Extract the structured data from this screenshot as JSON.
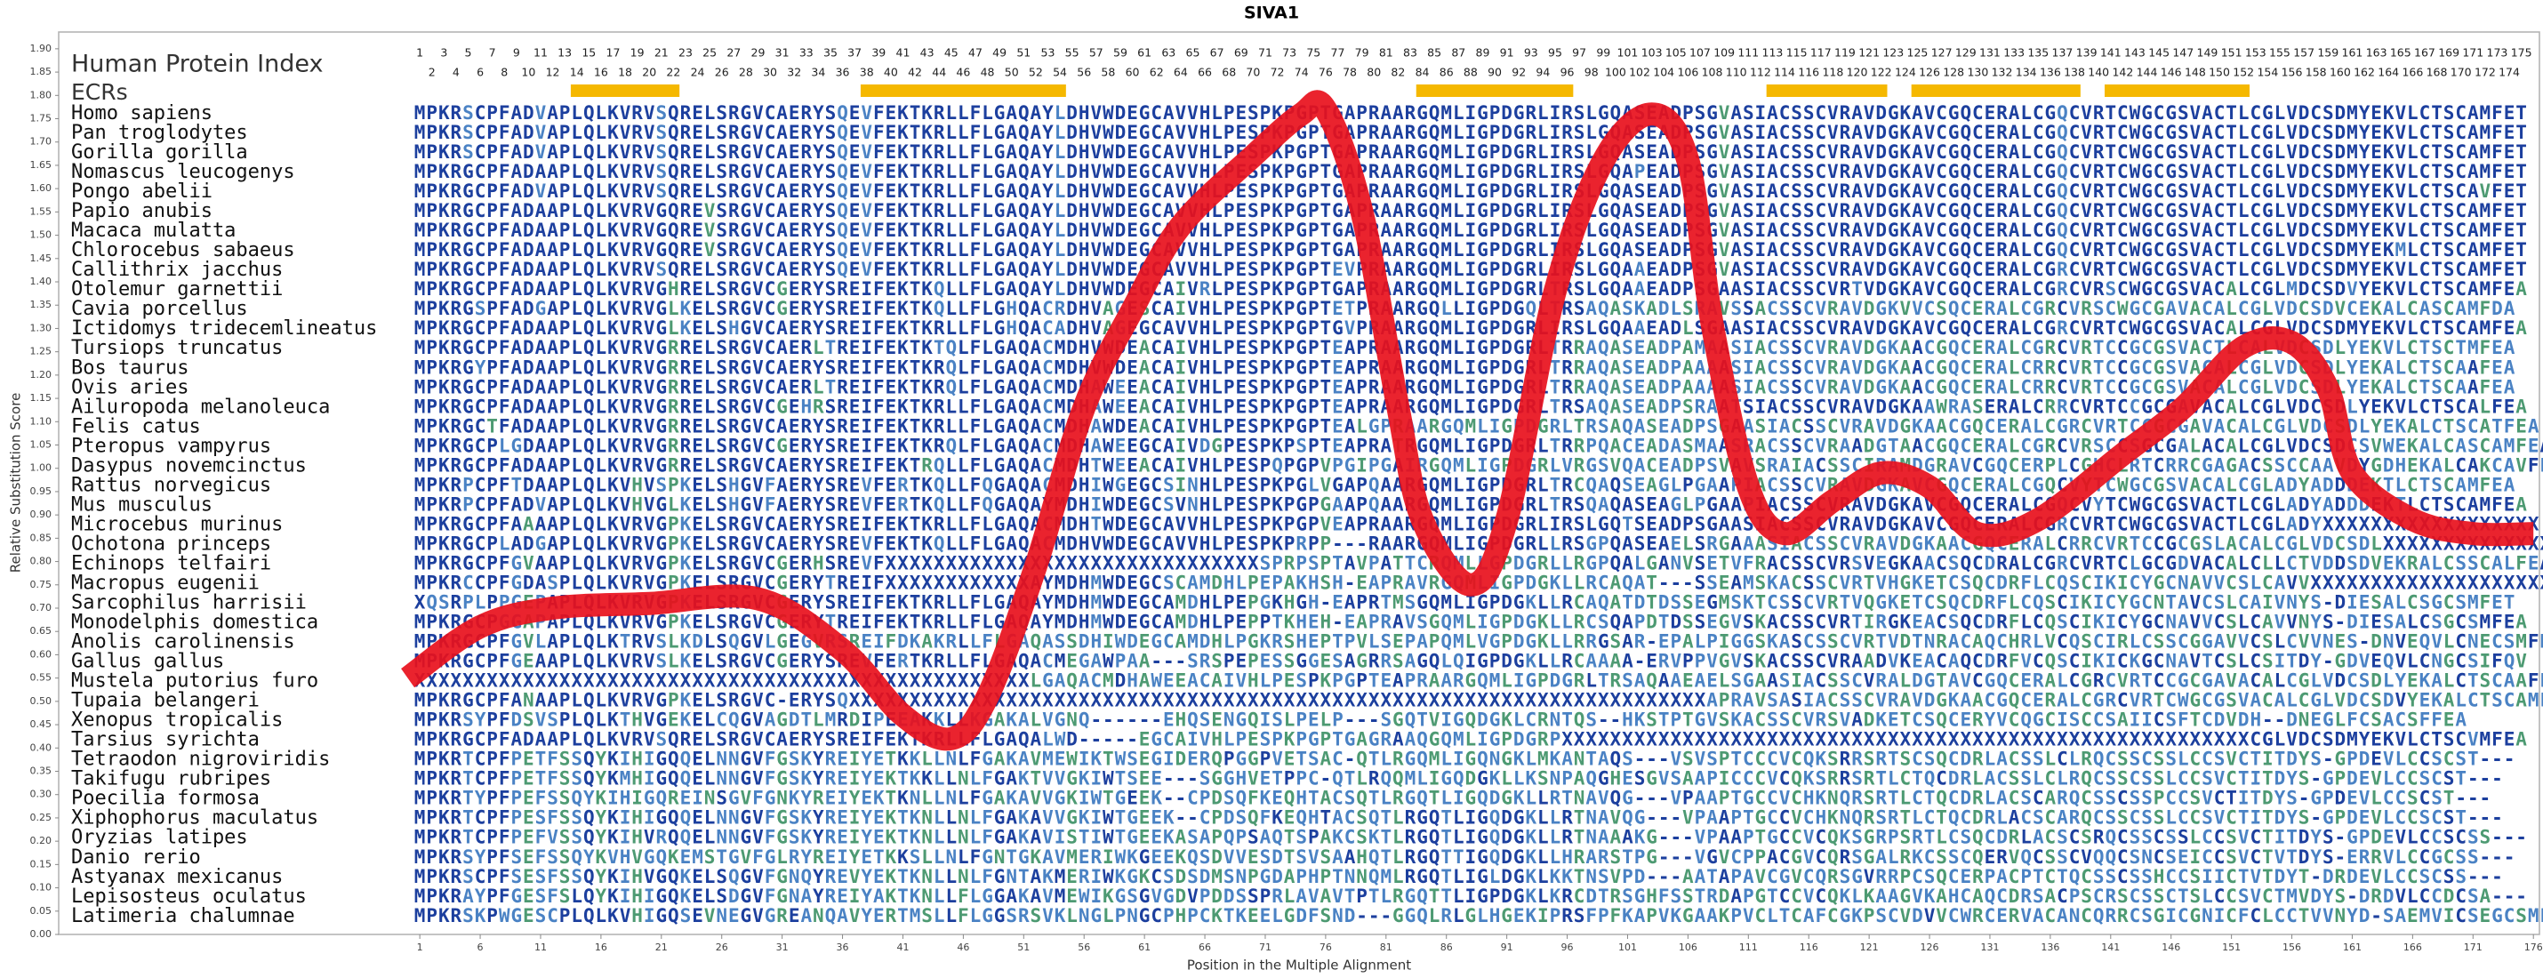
{
  "chart_data": {
    "type": "line",
    "title": "SIVA1",
    "x_label": "Position in the Multiple Alignment",
    "y_label": "Relative Substitution Score",
    "xlim": [
      -28.9,
      176.5
    ],
    "ylim": [
      0,
      1.936
    ],
    "xticks": [
      1,
      6,
      11,
      16,
      21,
      26,
      31,
      36,
      41,
      46,
      51,
      56,
      61,
      66,
      71,
      76,
      81,
      86,
      91,
      96,
      101,
      106,
      111,
      116,
      121,
      126,
      131,
      136,
      141,
      146,
      151,
      156,
      161,
      166,
      171,
      176
    ],
    "yticks": [
      {
        "value": 0,
        "label": "0.00"
      },
      {
        "value": 0.05,
        "label": "0.05"
      },
      {
        "value": 0.1,
        "label": "0.10"
      },
      {
        "value": 0.15,
        "label": "0.15"
      },
      {
        "value": 0.2,
        "label": "0.20"
      },
      {
        "value": 0.25,
        "label": "0.25"
      },
      {
        "value": 0.3,
        "label": "0.30"
      },
      {
        "value": 0.35,
        "label": "0.35"
      },
      {
        "value": 0.4,
        "label": "0.40"
      },
      {
        "value": 0.45,
        "label": "0.45"
      },
      {
        "value": 0.5,
        "label": "0.50"
      },
      {
        "value": 0.55,
        "label": "0.55"
      },
      {
        "value": 0.6,
        "label": "0.60"
      },
      {
        "value": 0.65,
        "label": "0.65"
      },
      {
        "value": 0.7,
        "label": "0.70"
      },
      {
        "value": 0.75,
        "label": "0.75"
      },
      {
        "value": 0.8,
        "label": "0.80"
      },
      {
        "value": 0.85,
        "label": "0.85"
      },
      {
        "value": 0.9,
        "label": "0.90"
      },
      {
        "value": 0.95,
        "label": "0.95"
      },
      {
        "value": 1,
        "label": "1.00"
      },
      {
        "value": 1.05,
        "label": "1.05"
      },
      {
        "value": 1.1,
        "label": "1.10"
      },
      {
        "value": 1.15,
        "label": "1.15"
      },
      {
        "value": 1.2,
        "label": "1.20"
      },
      {
        "value": 1.25,
        "label": "1.25"
      },
      {
        "value": 1.3,
        "label": "1.30"
      },
      {
        "value": 1.35,
        "label": "1.35"
      },
      {
        "value": 1.4,
        "label": "1.40"
      },
      {
        "value": 1.45,
        "label": "1.45"
      },
      {
        "value": 1.5,
        "label": "1.50"
      },
      {
        "value": 1.55,
        "label": "1.55"
      },
      {
        "value": 1.6,
        "label": "1.60"
      },
      {
        "value": 1.65,
        "label": "1.65"
      },
      {
        "value": 1.7,
        "label": "1.70"
      },
      {
        "value": 1.75,
        "label": "1.75"
      },
      {
        "value": 1.8,
        "label": "1.80"
      },
      {
        "value": 1.85,
        "label": "1.85"
      },
      {
        "value": 1.9,
        "label": "1.90"
      }
    ],
    "x": [
      0,
      6,
      12,
      20,
      29,
      36,
      41,
      45,
      48,
      52,
      56,
      60,
      64,
      70,
      74,
      76,
      79,
      82,
      84,
      88,
      91,
      95,
      99,
      103,
      106,
      108,
      111,
      114,
      118,
      122,
      126,
      130,
      135,
      142,
      147,
      152,
      156,
      159,
      161,
      166,
      171,
      176
    ],
    "series": [
      {
        "color": "#e8101c",
        "values": [
          0.55,
          0.66,
          0.7,
          0.71,
          0.72,
          0.61,
          0.47,
          0.42,
          0.51,
          0.79,
          1.13,
          1.34,
          1.52,
          1.67,
          1.76,
          1.77,
          1.55,
          1.13,
          0.89,
          0.75,
          0.89,
          1.38,
          1.66,
          1.76,
          1.66,
          1.31,
          0.96,
          0.86,
          0.93,
          0.99,
          0.96,
          0.86,
          0.89,
          1.03,
          1.13,
          1.26,
          1.27,
          1.17,
          0.99,
          0.89,
          0.86,
          0.86
        ]
      }
    ],
    "human_protein_index": {
      "label": "Human Protein Index",
      "odd": [
        1,
        3,
        5,
        7,
        9,
        11,
        13,
        15,
        17,
        19,
        21,
        23,
        25,
        27,
        29,
        31,
        33,
        35,
        37,
        39,
        41,
        43,
        45,
        47,
        49,
        51,
        53,
        55,
        57,
        59,
        61,
        63,
        65,
        67,
        69,
        71,
        73,
        75,
        77,
        79,
        81,
        83,
        85,
        87,
        89,
        91,
        93,
        95,
        97,
        99,
        101,
        103,
        105,
        107,
        109,
        111,
        113,
        115,
        117,
        119,
        121,
        123,
        125,
        127,
        129,
        131,
        133,
        135,
        137,
        139,
        141,
        143,
        145,
        147,
        149,
        151,
        153,
        155,
        157,
        159,
        161,
        163,
        165,
        167,
        169,
        171,
        173,
        175
      ],
      "even": [
        2,
        4,
        6,
        8,
        10,
        12,
        14,
        16,
        18,
        20,
        22,
        24,
        26,
        28,
        30,
        32,
        34,
        36,
        38,
        40,
        42,
        44,
        46,
        48,
        50,
        52,
        54,
        56,
        58,
        60,
        62,
        64,
        66,
        68,
        70,
        72,
        74,
        76,
        78,
        80,
        82,
        84,
        86,
        88,
        90,
        92,
        94,
        96,
        98,
        100,
        102,
        104,
        106,
        108,
        110,
        112,
        114,
        116,
        118,
        120,
        122,
        124,
        126,
        128,
        130,
        132,
        134,
        136,
        138,
        140,
        142,
        144,
        146,
        148,
        150,
        152,
        154,
        156,
        158,
        160,
        162,
        164,
        166,
        168,
        170,
        172,
        174
      ]
    },
    "ecrs": {
      "label": "ECRs",
      "color": "#f5b800",
      "ranges": [
        [
          14,
          22
        ],
        [
          38,
          54
        ],
        [
          84,
          96
        ],
        [
          113,
          122
        ],
        [
          125,
          138
        ],
        [
          141,
          152
        ]
      ]
    },
    "alignment": [
      {
        "species": "Homo sapiens",
        "sequence": "MPKRSCPFADVAPLQLKVRVSQRELSRGVCAERYSQEVFEKTKRLLFLGAQAYLDHVWDEGCAVVHLPESPKPGPTGAPRAARGQMLIGPDGRLIRSLGQASEADPSGVASIACSSCVRAVDGKAVCGQCERALCGQCVRTCWGCGSVACTLCGLVDCSDMYEKVLCTSCAMFET"
      },
      {
        "species": "Pan troglodytes",
        "sequence": "MPKRSCPFADVAPLQLKVRVSQRELSRGVCAERYSQEVFEKTKRLLFLGAQAYLDHVWDEGCAVVHLPESPKPGPTGAPRAARGQMLIGPDGRLIRSLGQASEADPSGVASIACSSCVRAVDGKAVCGQCERALCGQCVRTCWGCGSVACTLCGLVDCSDMYEKVLCTSCAMFET"
      },
      {
        "species": "Gorilla gorilla",
        "sequence": "MPKRSCPFADVAPLQLKVRVSQRELSRGVCAERYSQEVFEKTKRLLFLGAQAYLDHVWDEGCAVVHLPESPKPGPTGAPRAARGQMLIGPDGRLIRSLGQASEADPSGVASIACSSCVRAVDGKAVCGQCERALCGQCVRTCWGCGSVACTLCGLVDCSDMYEKVLCTSCAMFET"
      },
      {
        "species": "Nomascus leucogenys",
        "sequence": "MPKRGCPFADAAPLQLKVRVSQRELSRGVCAERYSQEVFEKTKRLLFLGAQAYLDHVWDEGCAVVHLPESPKPGPTGAPRAARGQMLIGPDGRLIRSLGQAPEADPSGVASIACSSCVRAVDGKAVCGQCERALCGQCVRTCWGCGSVACTLCGLVDCSDMYEKVLCTSCAMFET"
      },
      {
        "species": "Pongo abelii",
        "sequence": "MPKRGCPFADVAPLQLKVRVSQRELSRGVCAERYSQEVFEKTKRLLFLGAQAYLDHVWDEGCAVVHLPESPKPGPTGAPRAARGQMLIGPDGRLIRSLGQASEADPSGVASIACSSCVRAVDGKAVCGQCERALCGQCVRTCWGCGSVACTLCGLVDCSDMYEKVLCTSCAVFET"
      },
      {
        "species": "Papio anubis",
        "sequence": "MPKRGCPFADAAPLQLKVRVGQREVSRGVCAERYSQEVFEKTKRLLFLGAQAYLDHVWDEGCAVVHLPESPKPGPTGAPRAARGQMLIGPDGRLIRSLGQASEADPSGVASIACSSCVRAVDGKAVCGQCERALCGQCVRTCWGCGSVACTLCGLVDCSDMYEKVLCTSCAMFET"
      },
      {
        "species": "Macaca mulatta",
        "sequence": "MPKRGCPFADAAPLQLKVRVGQREVSRGVCAERYSQEVFEKTKRLLFLGAQAYLDHVWDEGCAVVHLPESPKPGPTGAPRAARGQMLIGPDGRLIRSLGQASEADPSGVASIACSSCVRAVDGKAVCGQCERALCGQCVRTCWGCGSVACTLCGLVDCSDMYEKVLCTSCAMFET"
      },
      {
        "species": "Chlorocebus sabaeus",
        "sequence": "MPKRGCPFADAAPLQLKVRVGQREVSRGVCAERYSQEVFEKTKRLLFLGAQAYLDHVWDEGCAVVHLPESPKPGPTGAPRAARGQMLIGPDGRLIRSLGQASEADPSGVASIACSSCVRAVDGKAVCGQCERALCGQCVRTCWGCGSVACTLCGLVDCSDMYEKMLCTSCAMFET"
      },
      {
        "species": "Callithrix jacchus",
        "sequence": "MPKRGCPFADAAPLQLKVRVSQRELSRGVCAERYSQEVFEKTKRLLFLGAQAYLDHVWDEGCAVVHLPESPKPGPTEVPRAARGQMLIGPDGRLIRSLGQAAEADPSGVASIACSSCVRAVDGKAVCGQCERALCGRCVRTCWGCGSVACTLCGLVDCSDMYEKVLCTSCAMFET"
      },
      {
        "species": "Otolemur garnettii",
        "sequence": "MPKRGCPFADAAPLQLKVRVGHRELSRGVCGERYSREIFEKTKQLLFLGAQAYLDHVWDEGCAIVRLPESPKPGPTGAPRAARGQMLIGPDGRLTRSLGQAAEADPSGAASIACSSCVRTVDGKAVCGQCERALCGRCVRSCWGCGSVACALCGLMDCSDVYEKVLCTSCAMFEA"
      },
      {
        "species": "Cavia porcellus",
        "sequence": "MPKRGSPFADGAPLQLKVRVGLKELSRGVCGERYSREIFEKTKQLLFLGHQACRDHVAGESCAIVHLPESPKPGPTETPRAARGQLLIGPDGQLTRSAQASKADLSRAVSSACSSCVRAVDGKVVCSQCERALCGRCVRSCWGCGAVACALCGLVDCSDVCEKALCASCAMFDA"
      },
      {
        "species": "Ictidomys tridecemlineatus",
        "sequence": "MPKRGCPFADAAPLQLKVRVGLKELSHGVCAERYSREIFEKTKRLLFLGHQACADHVAGEGCAVVHLPESPKPGPTGVPRAARGQMLIGPDGRLIRSLGQAAEADLSGAASIACSSCVRAVDGKAVCGQCERALCGRCVRTCWGCGSVACALCGLVDCSDMYEKVLCTSCAMFEA"
      },
      {
        "species": "Tursiops truncatus",
        "sequence": "MPKRGCPFADAAPLQLKVRVGRRELSRGVCAERLTREIFEKTKTQLFLGAQACMDHVWDEACAIVHLPESPKPGPTEAPRAARGQMLIGPDGRLTRRAQASEADPAMAASIACSSCVRAVDGKAACGQCERALCGRCVRTCCGCGSVACTLCALVDCSDLYEKVLCTSCTMFEA"
      },
      {
        "species": "Bos taurus",
        "sequence": "MPKRGYPFADAAPLQLKVRVGRRELSRGVCAERYSREIFEKTKRQLFLGAQACMDHVWDEACAIVHLPESPKPGPTEAPRAARGQMLIGPDGRLTRRAQASEADPAAAASIACSSCVRAVDGKAACGQCERALCRRCVRTCCGCGSVACALCGLVDCSDLYEKALCTSCAAFEA"
      },
      {
        "species": "Ovis aries",
        "sequence": "MPKRGCPFADAAPLQLKVRVGRRELSRGVCAERLTREIFEKTKRQLFLGAQACMDHAWEEACAIVHLPESPKPGPTEAPRAARGQMLIGPDGRLTRRAQASEADPAAAASIACSSCVRAVDGKAACGQCERALCRRCVRTCCGCGSVACALCGLVDCSDLYEKALCTSCAAFEA"
      },
      {
        "species": "Ailuropoda melanoleuca",
        "sequence": "MPKRGCPFADAAPLQLKVRVGRRELSRGVCGEHRSREIFEKTKRLLFLGAQACMDHAWEEACAIVHLPESPKPGPTEAPRAARGQMLIGPDGRLTRSAQASEADPSRAATSIACSSCVRAVDGKAAWRASERALCRRCVRTCCGCGAVACALCGLVDCSDLYEKVLCTSCALFEA"
      },
      {
        "species": "Felis catus",
        "sequence": "MPKRGCTFADAAPLQLKVRVGRRELSRGVCAERYSREIFEKTKRLLFLGAQACMDHAWDEACAIVHLPESPKPGPTEALGPRAARGQMLIGPDGRLTRSAQASEADPSGAASIACSSCVRAVDGKAACGQCERALCGRCVRTCCGCGAVACALCGLVDCSDLYEKALCTSCATFEA"
      },
      {
        "species": "Pteropus vampyrus",
        "sequence": "MPKRGCPLGDAAPLQLKVRVGRRELSRGVCGERYSREIFEKTKRQLFLGAQACMDHAWEEGCAIVDGPESPKPSPTEAPRATRGQMLIGPDGRLTRRPQACEADASMAASRACSSCVRAADGTAACGQCERALCGRCVRSCCSGCGALACALCGLVDCSDCSVWEKALCASCAMFEA"
      },
      {
        "species": "Dasypus novemcinctus",
        "sequence": "MPKRGCPFADAAPLQLKVRVGRRELSRGVCAERYSREIFEKTRQLLFLGAQACMDHTWEEACAIVHLPESPQPGPVPGIPGAIRGQMLIGPDGRLVRGSVQACEADPSVAVSRAIACSSCIRAMDGRAVCGQCERPLCGHCLRTCRRCGAGACSSCCAAVDYGDHEKALCAKCAVFEA"
      },
      {
        "species": "Rattus norvegicus",
        "sequence": "MPKRPCPFTDAAPLQLKVHVSPKELSHGVFAERYSREVFERTKQLLFQGAQACMDHIWGEGCSINHLPESPKPGLVGAPQAARGQMLIGPDGRLTRCQAQSEAGLPGAAPIACSSCVRAVDGKAVCGQCERALCGQCVYTCWGCGSVACALCGLADYADDDEKTLCTSCAMFEA"
      },
      {
        "species": "Mus musculus",
        "sequence": "MPKRPCPFADVAPLQLKVHVGLKELSHGVFAERYSREVFERTKQLLFQGAQAYMDHIWDEGCSVNHLPESPKPGPGAAPQAARGQMLIGPDGRLTRSQAQASEAGLPGAAPIACSSCVRAVDGKAVCGQCERALCGQCVYTCWGCGSVACTLCGLADYADDDEKTLCTSCAMFEA"
      },
      {
        "species": "Microcebus murinus",
        "sequence": "MPKRGCPFAAAAPLQLKVRVGPKELSRGVCAERYSREIFEKTKRLLFLGAQACMDHTWDEGCAVVHLPESPKPGPVEAPRAARGQMLIGPDGRLIRSLGQTSEADPSGAASIACSSCVRAVDGKAVCGQCERALCGRCVRTCWGCGSVACTLCGLADYXXXXXXXXXXXXXXXXXX"
      },
      {
        "species": "Ochotona princeps",
        "sequence": "MPKRGCPLADGAPLQLKVRVGPKELSRGVCAERYSREVFEKTKQLLFLGAQACMDHVWDEGCAVVHLPESPKPRPP---RAARGQMLIGPDGRLLRSGPQASEAELSRGAAASIACSSCVRAVDGKAACGQCERALCRRCVRTCCGCGSLACALCGLVDCSDLXXXXXXXXXXXXXXXX"
      },
      {
        "species": "Echinops telfairi",
        "sequence": "MPKRGCPFGVAAPLQLKVRVGPKELSRGVCGERHSREVFXXXXXXXXXXXXXXXXXXXXXXXXXXXXXXXSPRPSPTAVPATTCRQMLLGPDGRLLRGPQALGANVSETVFRACSSCVRSVEGKAACSQCDRALCGRCVRTCLGCGDVACALCLLCTVDDSDVEKRALCSSCALFEA"
      },
      {
        "species": "Macropus eugenii",
        "sequence": "MPKRCCPFGDASPLQLKVRVGPKELSRGVCGERYTREIFXXXXXXXXXXXXAYMDHMWDEGCSCAMDHLPEPAKHSH-EAPRAVRGQMLIGPDGKLLRCAQAT---SSEAMSKACSSCVRTVHGKETCSQCDRFLCQSCIKICYGCNAVVCSLCAVVXXXXXXXXXXXXXXXXXXXX"
      },
      {
        "species": "Sarcophilus harrisii",
        "sequence": "XQSRPLPPGEPAPLQLKVRVGPKELSRGVCGERYSREIFEKTKRLLFLGAQAYMDHMWDEGCAMDHLPEPGKHGH-EAPRTMSGQMLIGPDGKLLRCAQATDTDSSEGMSKTCSSCVRTVQGKETCSQCDRFLCQSCIKICYGCNTAVCSLCAIVNYS-DIESALCSGCSMFET"
      },
      {
        "species": "Monodelphis domestica",
        "sequence": "MPKRGCPGGAPAPLQLKVRVGPKELSRGVCGERYTREIFEKTKRLLFLGAQAYMDHMWDEGCAMDHLPEPPTKHEH-EAPRAVSGQMLIGPDGKLLRCSQAPDTDSSEGVSKACSSCVRTIRGKEACSQCDRFLCQSCIKICYGCNAVVCSLCAVVNYS-DIESALCSGCSMFEA"
      },
      {
        "species": "Anolis carolinensis",
        "sequence": "MPKRGCPFGVLAPLQLKTRVSLKDLSQGVLGEGVRSREIFDKAKRLLFLGAQASSDHIWDEGCAMDHLPGKRSHEPTPVLSEPAPQMLVGPDGKLLRRGSAR-EPALPIGGSKASCSSCVRTVDTNRACAQCHRLVCQSCIRLCSSCGGAVVCSLCVVNES-DNVEQVLCNECSMFKD"
      },
      {
        "species": "Gallus gallus",
        "sequence": "MPKRGCPFGEAAPLQLKVRVSLKELSRGVCGERYSREVFERTKRLLFLGAQACMEGAWPAA---SRSPEPESSGGESAGRRSAGQLQIGPDGKLLRCAAAA-ERVPPVGVSKACSSCVRAADVKEACAQCDRFVCQSCIKICKGCNAVTCSLCSITDY-GDVEQVLCNGCSIFQV"
      },
      {
        "species": "Mustela putorius furo",
        "sequence": "XXXXXXXXXXXXXXXXXXXXXXXXXXXXXXXXXXXXXXXXXXXXXXXXXXXLGAQACMDHAWEEACAIVHLPESPKPGPTEAPRAARGQMLIGPDGRLTRSAQAAEAELSGAASIACSSCVRALDGTAVCGQCERALCGRCVRTCCGCGAVACALCGLVDCSDLYEKALCTSCAAFEA"
      },
      {
        "species": "Tupaia belangeri",
        "sequence": "MPKRGCPFANAAPLQLKVRVGPKELSRGVC-ERYSQXXXXXXXXXXXXXXXXXXXXXXXXXXXXXXXXXXXXXXXXXXXXXXXXXXXXXXXXXXXXXXXXXXXXXXXAPRAVSASIACSSCVRAVDGKAACGQCERALCGRCVRTCWGCGSVACALCGLVDCSDVYEKALCTSCAMFEA"
      },
      {
        "species": "Xenopus tropicalis",
        "sequence": "MPKRSYPFDSVSPLQLKTHVGEKELCQGVAGDTLMRDIPEEAKKLLKGAKALVGNQ------EHQSENGQISLPELP---SGQTVIGQDGKLCRNTQS--HKSTPTGVSKACSSCVRSVADKETCSQCERYVCQGCISCCSAIICSFTCDVDH--DNEGLFCSACSFFEA"
      },
      {
        "species": "Tarsius syrichta",
        "sequence": "MPKRGCPFADAAPLQLKVRVSQRELSRGVCAERYSREIFEKTKRLLFLGAQALWD-----EGCAIVHLPESPKPGPTGAGRAAQGQMLIGPDGRPXXXXXXXXXXXXXXXXXXXXXXXXXXXXXXXXXXXXXXXXXXXXXXXXXXXXXXXXXCGLVDCSDMYEKVLCTSCVMFEA"
      },
      {
        "species": "Tetraodon nigroviridis",
        "sequence": "MPKRTCPFPETFSSQYKIHIGQQELNNGVFGSKYREIYETKKLLNLFGAKAVMEWIKTWSEGIDERQPGGPVETSAC-QTLRGQMLIGQNGKLMKANTAQS---VSVSPTCCCVCQKSRRSRTSCSQCDRLACSSLCLRQCSSCSSLCCSVCTITDYS-GPDEVLCCSCST---"
      },
      {
        "species": "Takifugu rubripes",
        "sequence": "MPKRTCPFPETFSSQYKMHIGQQELNNGVFGSKYREIYEKTKKLLNLFGAKTVVGKIWTSEE---SGGHVETPPC-QTLRQQMLIGQDGKLLKSNPAQGHESGVSAAPICCCVCQKSRRSRTLCTQCDRLACSSLCLRQCSSCSSLCCSVCTITDYS-GPDEVLCCSCST---"
      },
      {
        "species": "Poecilia formosa",
        "sequence": "MPKRTYPFPEFSSQYKIHIGQREINSGVFGNKYREIYEKTKNLLNLFGAKAVVGKIWTGEEK--CPDSQFKEQHTACSQTLRGQTLIGQDGKLLRTNAVQG---VPAAPTGCCVCHKNQRSRTLCTQCDRLACSCARQCSSCSSPCCSVCTITDYS-GPDEVLCCSCST---"
      },
      {
        "species": "Xiphophorus maculatus",
        "sequence": "MPKRTCPFPESFSSQYKIHIGQQELNNGVFGSKYREIYEKTKNLLNLFGAKAVVGKIWTGEEK--CPDSQFKEQHTACSQTLRGQTLIGQDGKLLRTNAVQG---VPAAPTGCCVCHKNQRSRTLCTQCDRLACSCARQCSSCSSLCCSVCTITDYS-GPDEVLCCSCST---"
      },
      {
        "species": "Oryzias latipes",
        "sequence": "MPKRTCPFPEFVSSQYKIHVRQQELNNGVFGSKYREIYEKTKNLLNLFGAKAVISTIWTGEEKASAPQPSAQTSPAKCSKTLRGQTLIGQDGKLLRTNAAAKG---VPAAPTGCCVCQKSGRPSRTLCSQCDRLACSCSRQCSSCSSLCCSVCTITDYS-GPDEVLCCSCSS---"
      },
      {
        "species": "Danio rerio",
        "sequence": "MPKRSYPFSEFSSQYKVHVGQKEMSTGVFGLRYREIYETKKSLLNLFGNTGKAVMERIWKGEEKQSDVVESDTSVSAAHQTLRGQTTIGQDGKLLHRARSTPG---VGVCPPACGVCQRSGALRKCSSCQERVQCSSCVQQCSNCSEICCSVCTVTDYS-ERRVLCCGCSS---"
      },
      {
        "species": "Astyanax mexicanus",
        "sequence": "MPKRSCPFSESFSSQYKIHVGQKELSQGVFGNQYREVYEKTKNLLNLFGNTAKMERIWKGKCSDSDMSNPGDAPHPTNNQMLRGQTLIGLDGKLKKTNSVPD---AATAPAVCGVCQRSGVRRPCSQCERPACPTCTQCSSCSSHCCSIICTVTDYT-DRDEVLCCSCSS---"
      },
      {
        "species": "Lepisosteus oculatus",
        "sequence": "MPKRAYPFGESFSLQYKIHIGQKELSDGVFGNAYREIYAKTKNLLFLGGAKAVMEWIKGSGVGDVPDDSSPRLAVAVTPTLRGQTTLIGPDGKLKRCDTRSGHFSSTRDAPGTCCVCQKLKAAGVKAHCAQCDRSACPSCRSCSSCTSLCCSVCTMVDYS-DRDVLCCDCSA---"
      },
      {
        "species": "Latimeria chalumnae",
        "sequence": "MPKRSKPWGESCPLQLKVHIGQSEVNEGVGREANQAVYERTMSLLFLGGSRSVKLNGLPNGCPHPCKTKEELGDFSND---GGQLRLGLHGEKIPRSFPFKAPVKGAAKPVCLTCAFCGKPSCVDVVCWRCERVACANCQRRCSGICGNICFCLCCTVVNYD-SAEMVICSEGCSMFQM"
      }
    ]
  }
}
